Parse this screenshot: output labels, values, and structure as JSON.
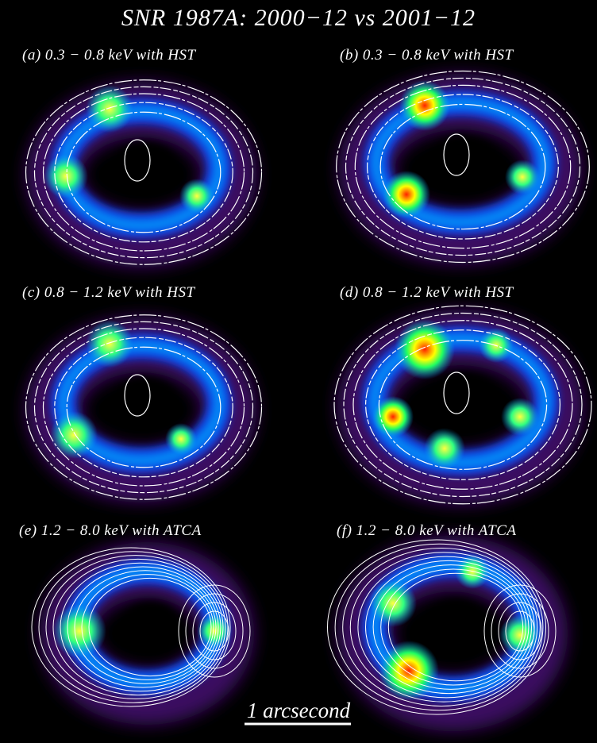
{
  "title": "SNR 1987A: 2000−12 vs 2001−12",
  "panels": [
    {
      "label": "(a) 0.3 − 0.8 keV with HST"
    },
    {
      "label": "(b) 0.3 − 0.8 keV with HST"
    },
    {
      "label": "(c) 0.8 − 1.2 keV with HST"
    },
    {
      "label": "(d) 0.8 − 1.2 keV with HST"
    },
    {
      "label": "(e) 1.2 − 8.0 keV with ATCA"
    },
    {
      "label": "(f) 1.2 − 8.0 keV with ATCA"
    }
  ],
  "scale_bar": {
    "label": "1 arcsecond"
  }
}
